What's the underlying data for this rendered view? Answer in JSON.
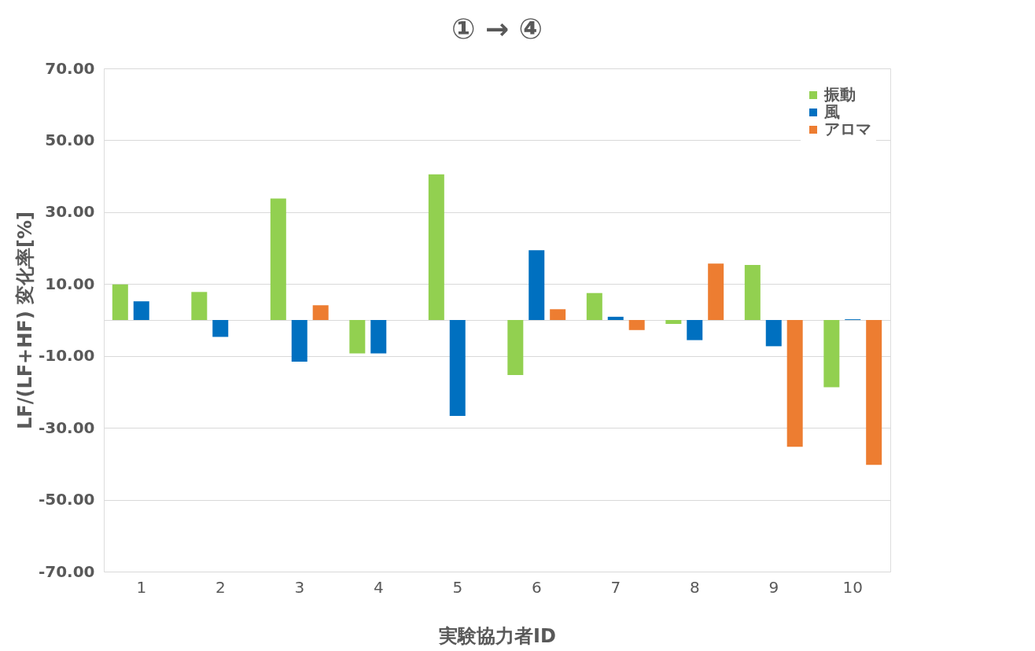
{
  "chart_data": {
    "type": "bar",
    "title": "① → ④",
    "xlabel": "実験協力者ID",
    "ylabel": "LF/(LF+HF) 変化率[%]",
    "categories": [
      "1",
      "2",
      "3",
      "4",
      "5",
      "6",
      "7",
      "8",
      "9",
      "10"
    ],
    "series": [
      {
        "name": "振動",
        "color": "#92d050",
        "values": [
          9.9,
          7.8,
          33.8,
          -9.3,
          40.5,
          -15.3,
          7.5,
          -1.1,
          15.3,
          -18.7
        ]
      },
      {
        "name": "風",
        "color": "#0070c0",
        "values": [
          5.2,
          -4.7,
          -11.6,
          -9.3,
          -26.7,
          19.4,
          0.9,
          -5.6,
          -7.3,
          0.2
        ]
      },
      {
        "name": "アロマ",
        "color": "#ed7d31",
        "values": [
          null,
          null,
          4.1,
          null,
          null,
          3.0,
          -2.8,
          15.7,
          -35.3,
          -40.3
        ]
      }
    ],
    "ylim": [
      -70,
      70
    ],
    "yticks": [
      {
        "value": -70,
        "label": "-70.00"
      },
      {
        "value": -50,
        "label": "-50.00"
      },
      {
        "value": -30,
        "label": "-30.00"
      },
      {
        "value": -10,
        "label": "-10.00"
      },
      {
        "value": 10,
        "label": "10.00"
      },
      {
        "value": 30,
        "label": "30.00"
      },
      {
        "value": 50,
        "label": "50.00"
      },
      {
        "value": 70,
        "label": "70.00"
      }
    ],
    "grid": "y",
    "legend": "top right"
  }
}
